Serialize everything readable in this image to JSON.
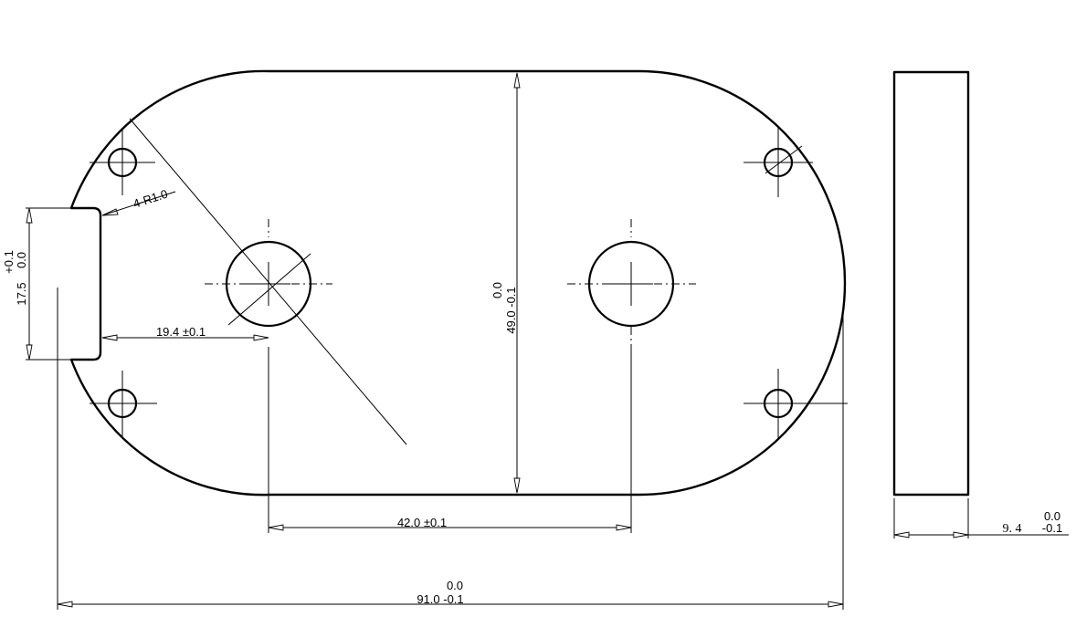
{
  "dimensions": {
    "overall_length": {
      "nominal": "91.0 -0.1",
      "upper": "0.0"
    },
    "width": {
      "nominal": "49.0 -0.1",
      "upper": "0.0"
    },
    "hole_spacing": {
      "text": "42.0 ±0.1"
    },
    "hole_offset": {
      "text": "19.4 ±0.1"
    },
    "slot_width": {
      "nominal": "17.5",
      "upper": "+0.1",
      "lower": "0.0"
    },
    "corner_radius": {
      "text": "4-R1.0"
    },
    "thickness": {
      "nominal": "9. 4",
      "upper": "0.0",
      "lower": "-0.1"
    }
  }
}
